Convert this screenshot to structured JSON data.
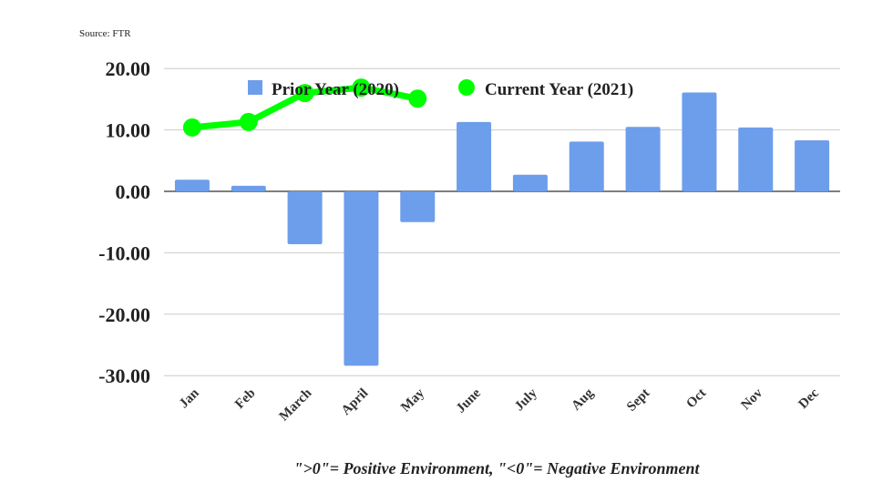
{
  "chart_data": {
    "type": "bar",
    "source": "Source: FTR",
    "categories": [
      "Jan",
      "Feb",
      "March",
      "April",
      "May",
      "June",
      "July",
      "Aug",
      "Sept",
      "Oct",
      "Nov",
      "Dec"
    ],
    "series": [
      {
        "name": "Prior Year (2020)",
        "type": "bar",
        "color": "#6d9eeb",
        "values": [
          1.9,
          0.9,
          -8.6,
          -28.4,
          -5.0,
          11.3,
          2.7,
          8.1,
          10.5,
          16.1,
          10.4,
          8.3
        ]
      },
      {
        "name": "Current Year (2021)",
        "type": "line",
        "color": "#00ff00",
        "values": [
          10.4,
          11.3,
          16.0,
          16.9,
          15.1,
          null,
          null,
          null,
          null,
          null,
          null,
          null
        ]
      }
    ],
    "ylim": [
      -30,
      20
    ],
    "yticks": [
      "20.00",
      "10.00",
      "0.00",
      "-10.00",
      "-20.00",
      "-30.00"
    ],
    "yticks_values": [
      20,
      10,
      0,
      -10,
      -20,
      -30
    ],
    "grid": true,
    "legend_position": "top",
    "footnote": "\">0\"= Positive Environment, \"<0\"= Negative Environment"
  }
}
